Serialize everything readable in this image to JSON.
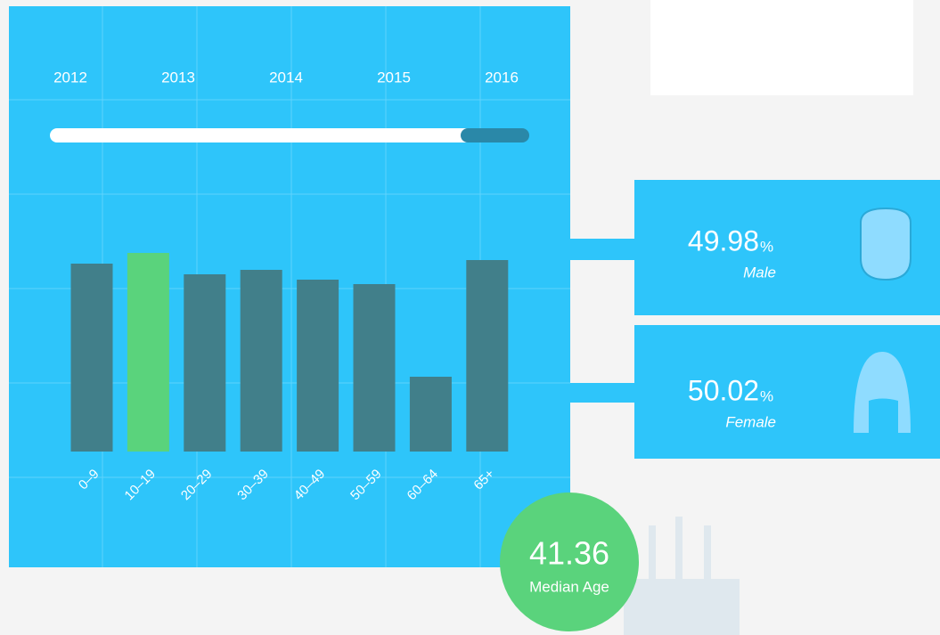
{
  "years": [
    "2012",
    "2013",
    "2014",
    "2015",
    "2016"
  ],
  "chart_data": {
    "type": "bar",
    "categories": [
      "0–9",
      "10–19",
      "20–29",
      "30–39",
      "40–49",
      "50–59",
      "60–64",
      "65+"
    ],
    "values": [
      211,
      223,
      199,
      204,
      193,
      188,
      84,
      215
    ],
    "colors": [
      "#417f8a",
      "#5ad37c",
      "#417f8a",
      "#417f8a",
      "#417f8a",
      "#417f8a",
      "#417f8a",
      "#417f8a"
    ],
    "ylim": [
      0,
      300
    ]
  },
  "gender": {
    "male": {
      "value": 49.98,
      "unit": "%",
      "label": "Male"
    },
    "female": {
      "value": 50.02,
      "unit": "%",
      "label": "Female"
    }
  },
  "median_age": {
    "value": 41.36,
    "label": "Median Age"
  }
}
